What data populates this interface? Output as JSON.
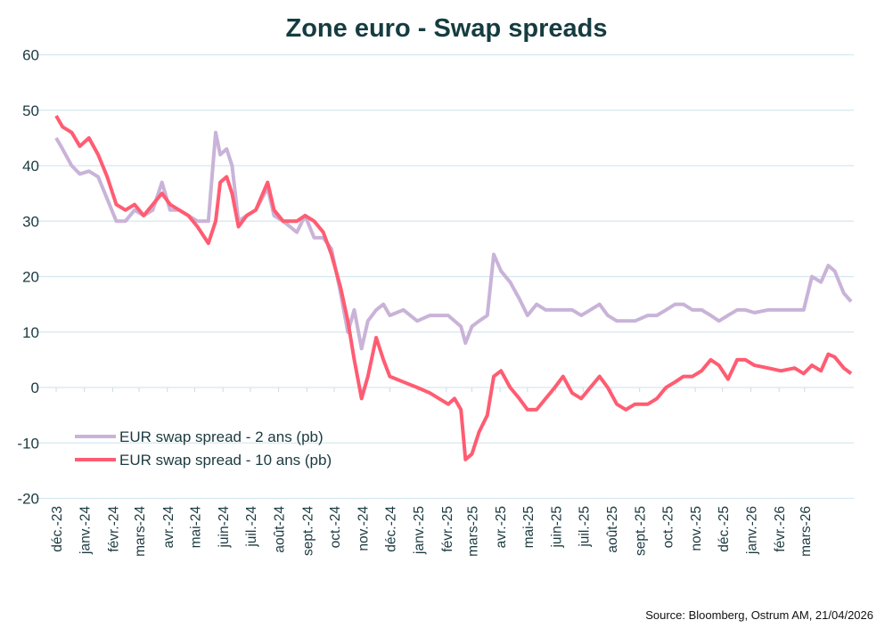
{
  "chart_data": {
    "type": "line",
    "title": "Zone euro - Swap spreads",
    "source": "Source: Bloomberg,  Ostrum AM, 21/04/2026",
    "xlabel": "",
    "ylabel": "",
    "ylim": [
      -20,
      60
    ],
    "yticks": [
      60,
      50,
      40,
      30,
      20,
      10,
      0,
      -10,
      -20
    ],
    "xlim": [
      "2023-12-01",
      "2026-04-21"
    ],
    "xtick_labels": [
      "déc.-23",
      "janv.-24",
      "févr.-24",
      "mars-24",
      "avr.-24",
      "mai-24",
      "juin-24",
      "juil.-24",
      "août-24",
      "sept.-24",
      "oct.-24",
      "nov.-24",
      "déc.-24",
      "janv.-25",
      "févr.-25",
      "mars-25",
      "avr.-25",
      "mai-25",
      "juin-25",
      "juil.-25",
      "août-25",
      "sept.-25",
      "oct.-25",
      "nov.-25",
      "déc.-25",
      "janv.-26",
      "févr.-26",
      "mars-26"
    ],
    "grid": true,
    "legend_position": "bottom-left",
    "dates": [
      "2023-12-01",
      "2023-12-08",
      "2023-12-18",
      "2023-12-27",
      "2024-01-06",
      "2024-01-16",
      "2024-01-26",
      "2024-02-05",
      "2024-02-15",
      "2024-02-25",
      "2024-03-06",
      "2024-03-16",
      "2024-03-26",
      "2024-04-04",
      "2024-04-14",
      "2024-04-24",
      "2024-05-04",
      "2024-05-16",
      "2024-05-24",
      "2024-05-29",
      "2024-06-05",
      "2024-06-11",
      "2024-06-18",
      "2024-06-27",
      "2024-07-07",
      "2024-07-20",
      "2024-07-27",
      "2024-08-06",
      "2024-08-21",
      "2024-08-30",
      "2024-09-09",
      "2024-09-19",
      "2024-09-28",
      "2024-10-08",
      "2024-10-16",
      "2024-10-23",
      "2024-10-31",
      "2024-11-07",
      "2024-11-16",
      "2024-11-24",
      "2024-12-01",
      "2024-12-16",
      "2024-12-31",
      "2025-01-14",
      "2025-01-24",
      "2025-02-03",
      "2025-02-10",
      "2025-02-17",
      "2025-02-22",
      "2025-03-01",
      "2025-03-09",
      "2025-03-18",
      "2025-03-25",
      "2025-04-02",
      "2025-04-12",
      "2025-04-22",
      "2025-05-01",
      "2025-05-11",
      "2025-05-21",
      "2025-05-31",
      "2025-06-09",
      "2025-06-19",
      "2025-06-29",
      "2025-07-09",
      "2025-07-19",
      "2025-07-28",
      "2025-08-07",
      "2025-08-17",
      "2025-08-27",
      "2025-09-10",
      "2025-09-20",
      "2025-09-30",
      "2025-10-10",
      "2025-10-19",
      "2025-10-29",
      "2025-11-08",
      "2025-11-18",
      "2025-11-27",
      "2025-12-07",
      "2025-12-17",
      "2025-12-26",
      "2026-01-05",
      "2026-01-20",
      "2026-02-03",
      "2026-02-18",
      "2026-02-28",
      "2026-03-09",
      "2026-03-19",
      "2026-03-27",
      "2026-04-03",
      "2026-04-13",
      "2026-04-21"
    ],
    "series": [
      {
        "name": "EUR swap spread - 2 ans  (pb)",
        "color": "#c9b3d8",
        "values": [
          45,
          43,
          40,
          38.5,
          39,
          38,
          34,
          30,
          30,
          32,
          31,
          32,
          37,
          32,
          32,
          31,
          30,
          30,
          46,
          42,
          43,
          40,
          30,
          31,
          32,
          36,
          31,
          30,
          28,
          31,
          27,
          27,
          25,
          17,
          10,
          14,
          7,
          12,
          14,
          15,
          13,
          14,
          12,
          13,
          13,
          13,
          12,
          11,
          8,
          11,
          12,
          13,
          24,
          21,
          19,
          16,
          13,
          15,
          14,
          14,
          14,
          14,
          13,
          14,
          15,
          13,
          12,
          12,
          12,
          13,
          13,
          14,
          15,
          15,
          14,
          14,
          13,
          12,
          13,
          14,
          14,
          13.5,
          14,
          14,
          14,
          14,
          20,
          19,
          22,
          21,
          17,
          15.5
        ]
      },
      {
        "name": "EUR swap spread - 10 ans  (pb)",
        "color": "#ff5c72",
        "values": [
          49,
          47,
          46,
          43.5,
          45,
          42,
          38,
          33,
          32,
          33,
          31,
          33,
          35,
          33,
          32,
          31,
          29,
          26,
          30,
          37,
          38,
          35,
          29,
          31,
          32,
          37,
          32,
          30,
          30,
          31,
          30,
          28,
          24,
          18,
          12,
          5,
          -2,
          2,
          9,
          5,
          2,
          1,
          0,
          -1,
          -2,
          -3,
          -2,
          -4,
          -13,
          -12,
          -8,
          -5,
          2,
          3,
          0,
          -2,
          -4,
          -4,
          -2,
          0,
          2,
          -1,
          -2,
          0,
          2,
          0,
          -3,
          -4,
          -3,
          -3,
          -2,
          0,
          1,
          2,
          2,
          3,
          5,
          4,
          1.5,
          5,
          5,
          4,
          3.5,
          3,
          3.5,
          2.5,
          4,
          3,
          6,
          5.5,
          3.5,
          2.5
        ]
      }
    ]
  }
}
